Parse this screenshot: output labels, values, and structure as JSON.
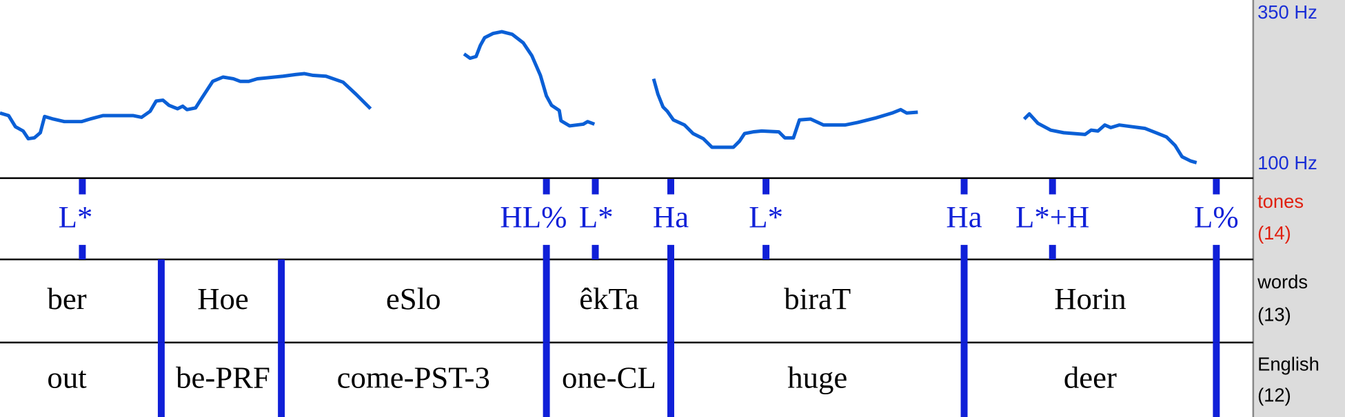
{
  "pitch": {
    "top_label": "350 Hz",
    "bottom_label": "100 Hz"
  },
  "tiers": [
    {
      "name": "tones",
      "count": "(14)",
      "labels": [
        "L*",
        "HL%",
        "L*",
        "Ha",
        "L*",
        "Ha",
        "L*+H",
        "L%"
      ]
    },
    {
      "name": "words",
      "count": "(13)",
      "labels": [
        "ber",
        "Hoe",
        "eSlo",
        "êkTa",
        "biraT",
        "Horin"
      ]
    },
    {
      "name": "English",
      "count": "(12)",
      "labels": [
        "out",
        "be-PRF",
        "come-PST-3",
        "one-CL",
        "huge",
        "deer"
      ]
    }
  ]
}
